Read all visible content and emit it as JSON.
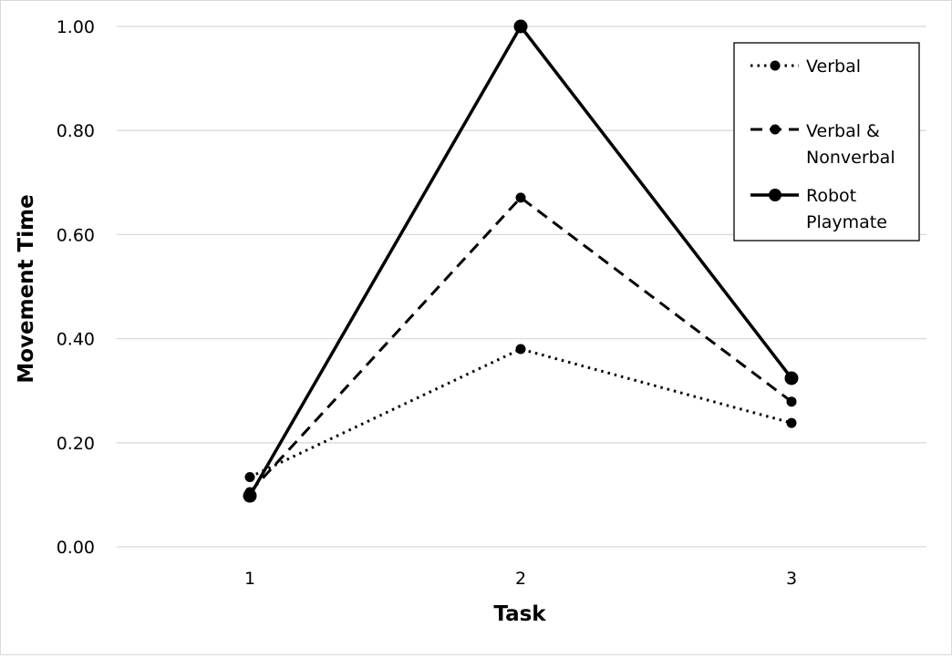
{
  "chart_data": {
    "type": "line",
    "title": "",
    "xlabel": "Task",
    "ylabel": "Movement Time",
    "categories": [
      "1",
      "2",
      "3"
    ],
    "ylim": [
      0,
      1
    ],
    "yticks": [
      "0.00",
      "0.20",
      "0.40",
      "0.60",
      "0.80",
      "1.00"
    ],
    "grid": true,
    "legend_position": "top-right",
    "series": [
      {
        "name": "Verbal",
        "legend_lines": [
          "Verbal"
        ],
        "style": "dotted",
        "marker": "small-circle",
        "color": "#000000",
        "values": [
          0.134,
          0.38,
          0.238
        ]
      },
      {
        "name": "Verbal & Nonverbal",
        "legend_lines": [
          "Verbal &",
          "Nonverbal"
        ],
        "style": "dashed",
        "marker": "small-circle",
        "color": "#000000",
        "values": [
          0.105,
          0.671,
          0.279
        ]
      },
      {
        "name": "Robot Playmate",
        "legend_lines": [
          "Robot",
          "Playmate"
        ],
        "style": "solid",
        "marker": "large-circle",
        "color": "#000000",
        "values": [
          0.098,
          1.0,
          0.324
        ]
      }
    ]
  }
}
